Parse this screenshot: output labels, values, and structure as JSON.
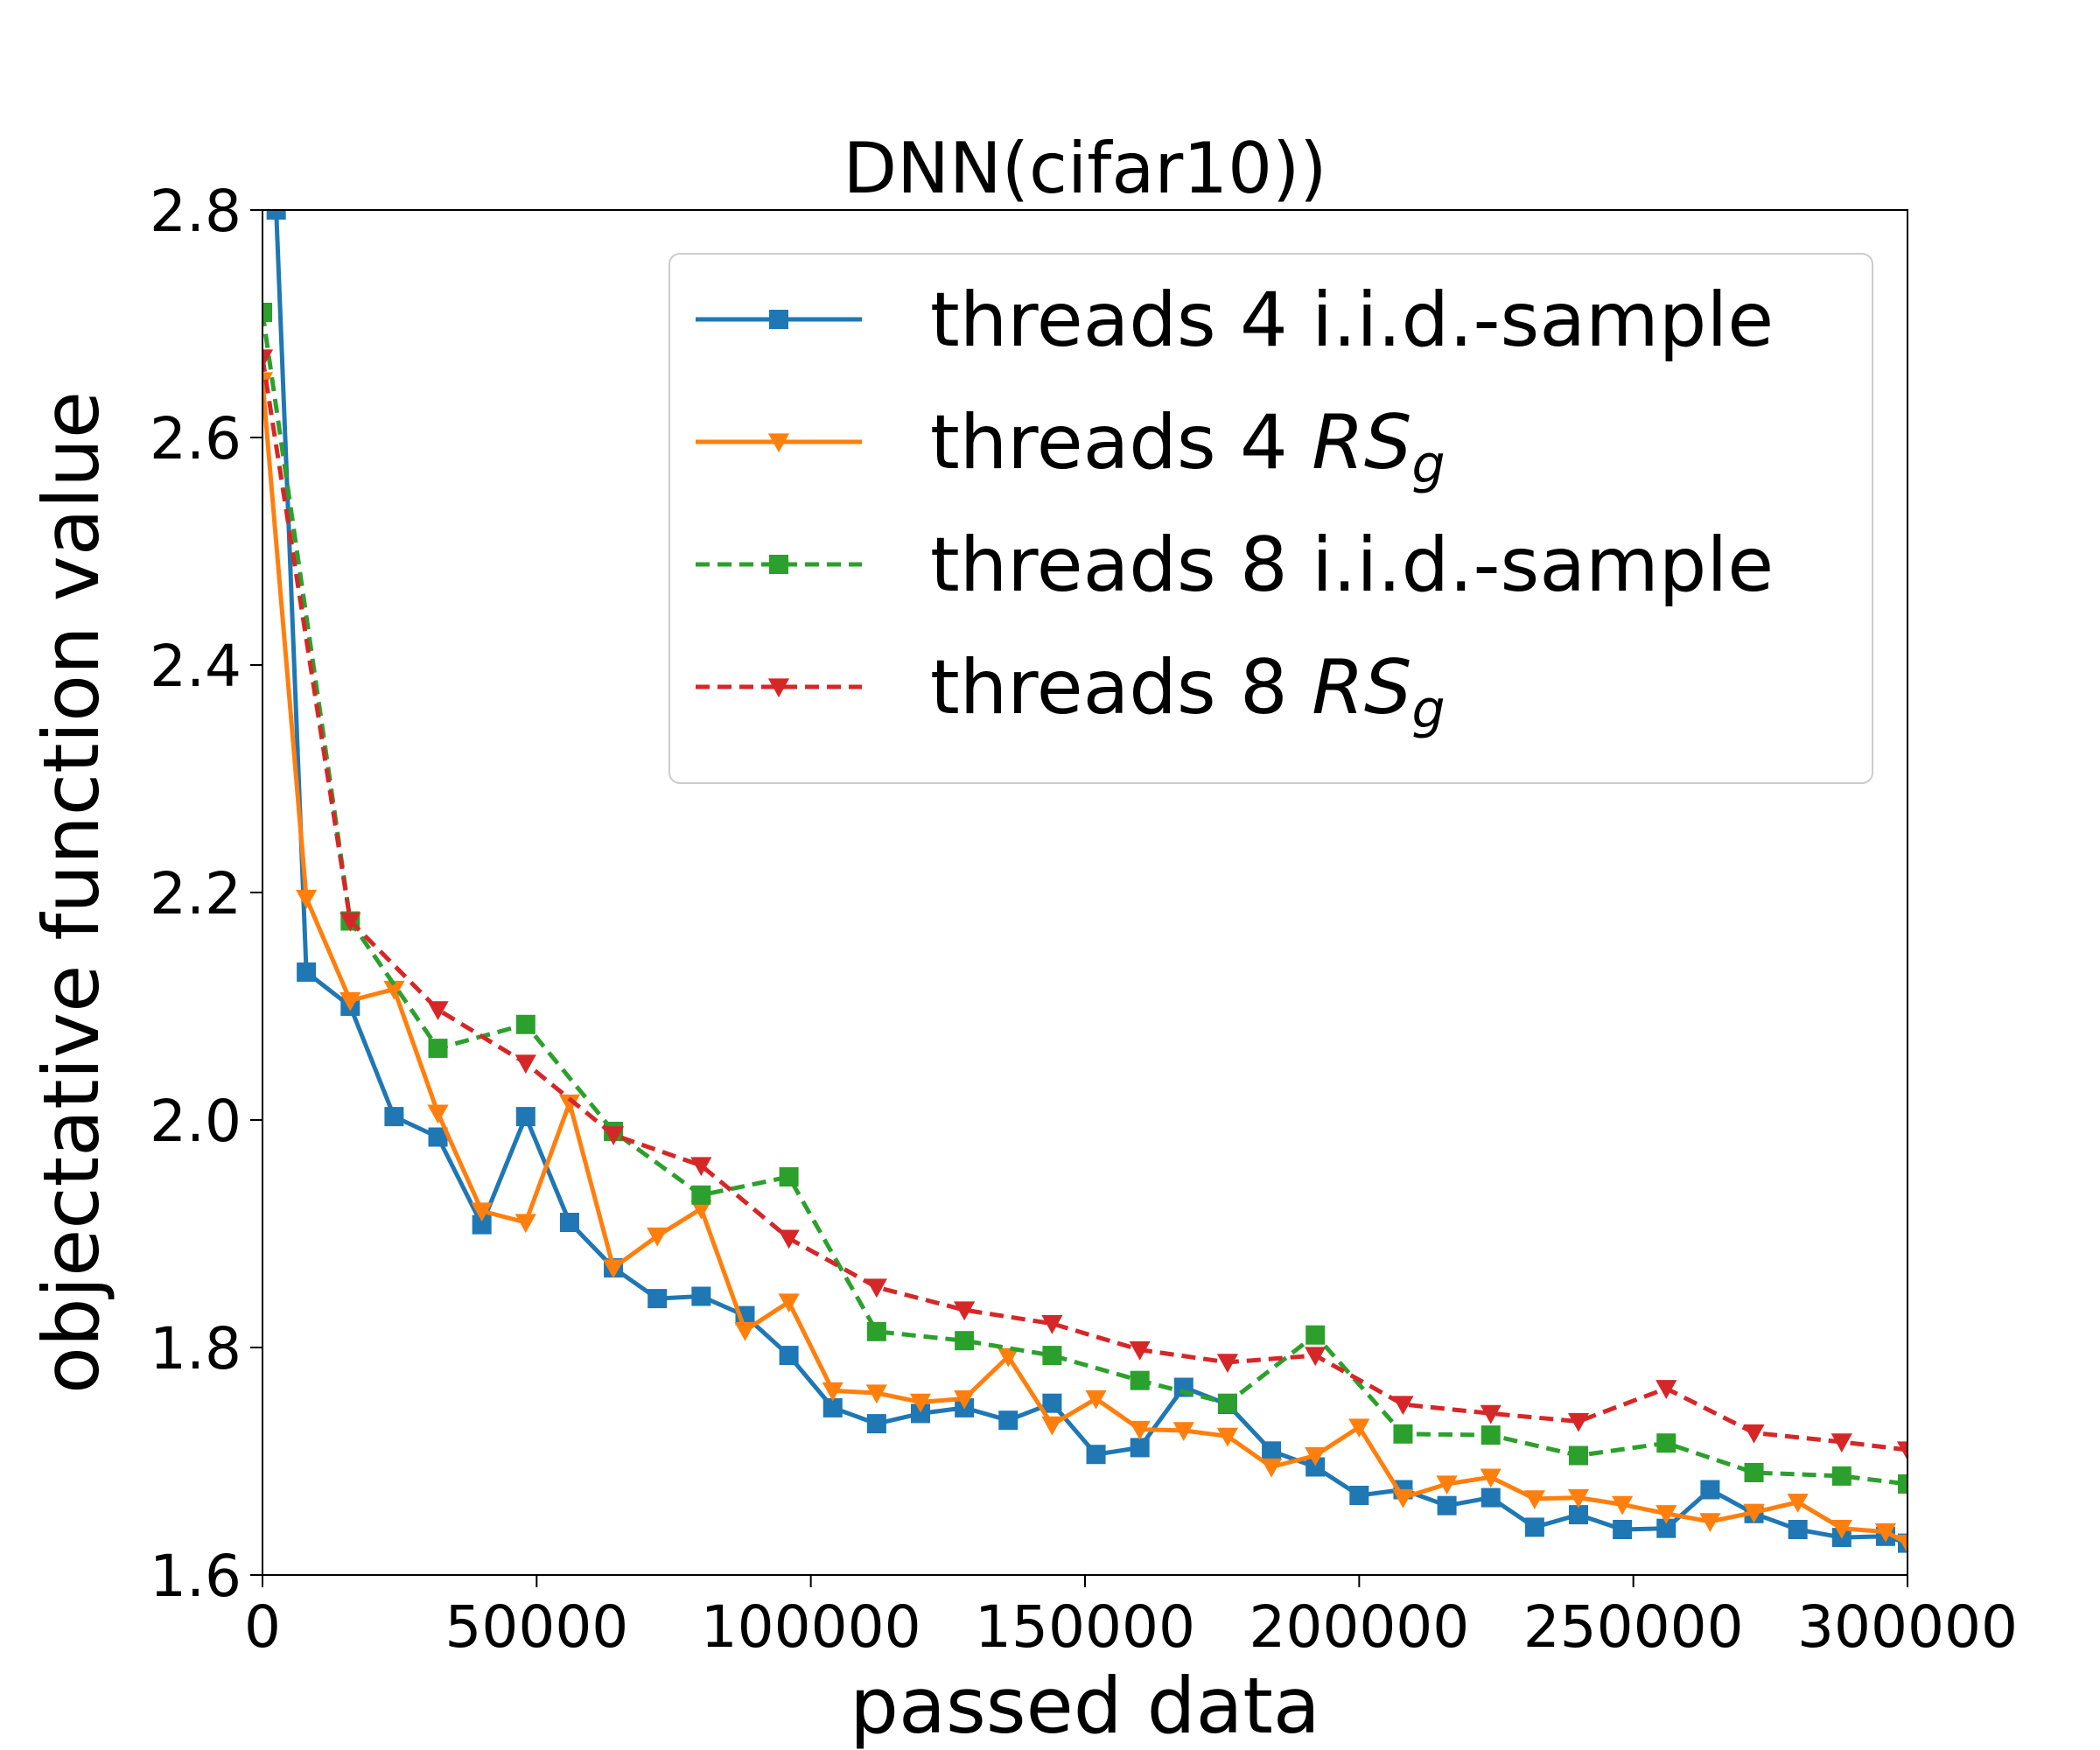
{
  "chart_data": {
    "type": "line",
    "title": "DNN(cifar10))",
    "xlabel": "passed data",
    "ylabel": "objectative function value",
    "xlim": [
      0,
      300000
    ],
    "ylim": [
      1.6,
      2.8
    ],
    "xticks": [
      0,
      50000,
      100000,
      150000,
      200000,
      250000,
      300000
    ],
    "yticks": [
      1.6,
      1.8,
      2.0,
      2.2,
      2.4,
      2.6,
      2.8
    ],
    "xtick_labels": [
      "0",
      "50000",
      "100000",
      "150000",
      "200000",
      "250000",
      "300000"
    ],
    "ytick_labels": [
      "1.6",
      "1.8",
      "2.0",
      "2.2",
      "2.4",
      "2.6",
      "2.8"
    ],
    "grid": false,
    "legend_position": "top-right",
    "series": [
      {
        "name": "threads 4 i.i.d.-sample",
        "legend_main": "threads 4 i.i.d.-sample",
        "legend_italic": "",
        "legend_sub": "",
        "color": "#1f77b4",
        "dash": "solid",
        "marker": "square",
        "x": [
          2500,
          8000,
          16000,
          24000,
          32000,
          40000,
          48000,
          56000,
          64000,
          72000,
          80000,
          88000,
          96000,
          104000,
          112000,
          120000,
          128000,
          136000,
          144000,
          152000,
          160000,
          168000,
          176000,
          184000,
          192000,
          200000,
          208000,
          216000,
          224000,
          232000,
          240000,
          248000,
          256000,
          264000,
          272000,
          280000,
          288000,
          296000,
          300000
        ],
        "y": [
          2.8,
          2.13,
          2.1,
          2.003,
          1.985,
          1.908,
          2.003,
          1.91,
          1.87,
          1.843,
          1.845,
          1.828,
          1.793,
          1.747,
          1.733,
          1.742,
          1.747,
          1.736,
          1.751,
          1.706,
          1.712,
          1.765,
          1.75,
          1.709,
          1.695,
          1.67,
          1.675,
          1.661,
          1.668,
          1.642,
          1.653,
          1.64,
          1.641,
          1.675,
          1.654,
          1.64,
          1.633,
          1.634,
          1.628
        ]
      },
      {
        "name": "threads 4 RSg",
        "legend_main": "threads 4 ",
        "legend_italic": "RS",
        "legend_sub": "g",
        "color": "#ff7f0e",
        "dash": "solid",
        "marker": "triangle-down",
        "x": [
          0,
          8000,
          16000,
          24000,
          32000,
          40000,
          48000,
          56000,
          64000,
          72000,
          80000,
          88000,
          96000,
          104000,
          112000,
          120000,
          128000,
          136000,
          144000,
          152000,
          160000,
          168000,
          176000,
          184000,
          192000,
          200000,
          208000,
          216000,
          224000,
          232000,
          240000,
          248000,
          256000,
          264000,
          272000,
          280000,
          288000,
          296000,
          300000
        ],
        "y": [
          2.65,
          2.195,
          2.105,
          2.115,
          2.006,
          1.92,
          1.91,
          2.015,
          1.87,
          1.898,
          1.922,
          1.815,
          1.84,
          1.762,
          1.76,
          1.752,
          1.755,
          1.792,
          1.732,
          1.755,
          1.728,
          1.727,
          1.722,
          1.695,
          1.705,
          1.73,
          1.668,
          1.68,
          1.686,
          1.667,
          1.668,
          1.662,
          1.654,
          1.647,
          1.655,
          1.664,
          1.641,
          1.638,
          1.628
        ]
      },
      {
        "name": "threads 8 i.i.d.-sample",
        "legend_main": "threads 8 i.i.d.-sample",
        "legend_italic": "",
        "legend_sub": "",
        "color": "#2ca02c",
        "dash": "dashed",
        "marker": "square",
        "x": [
          0,
          16000,
          32000,
          48000,
          64000,
          80000,
          96000,
          112000,
          128000,
          144000,
          160000,
          176000,
          192000,
          208000,
          224000,
          240000,
          256000,
          272000,
          288000,
          300000
        ],
        "y": [
          2.71,
          2.175,
          2.063,
          2.084,
          1.99,
          1.934,
          1.95,
          1.814,
          1.806,
          1.793,
          1.771,
          1.751,
          1.811,
          1.724,
          1.723,
          1.705,
          1.716,
          1.69,
          1.687,
          1.68
        ]
      },
      {
        "name": "threads 8 RSg",
        "legend_main": "threads 8 ",
        "legend_italic": "RS",
        "legend_sub": "g",
        "color": "#d62728",
        "dash": "dashed",
        "marker": "triangle-down",
        "x": [
          0,
          16000,
          32000,
          48000,
          64000,
          80000,
          96000,
          112000,
          128000,
          144000,
          160000,
          176000,
          192000,
          208000,
          224000,
          240000,
          256000,
          272000,
          288000,
          300000
        ],
        "y": [
          2.67,
          2.175,
          2.097,
          2.05,
          1.987,
          1.96,
          1.896,
          1.853,
          1.833,
          1.821,
          1.798,
          1.787,
          1.793,
          1.75,
          1.742,
          1.735,
          1.764,
          1.725,
          1.717,
          1.71
        ]
      }
    ]
  }
}
